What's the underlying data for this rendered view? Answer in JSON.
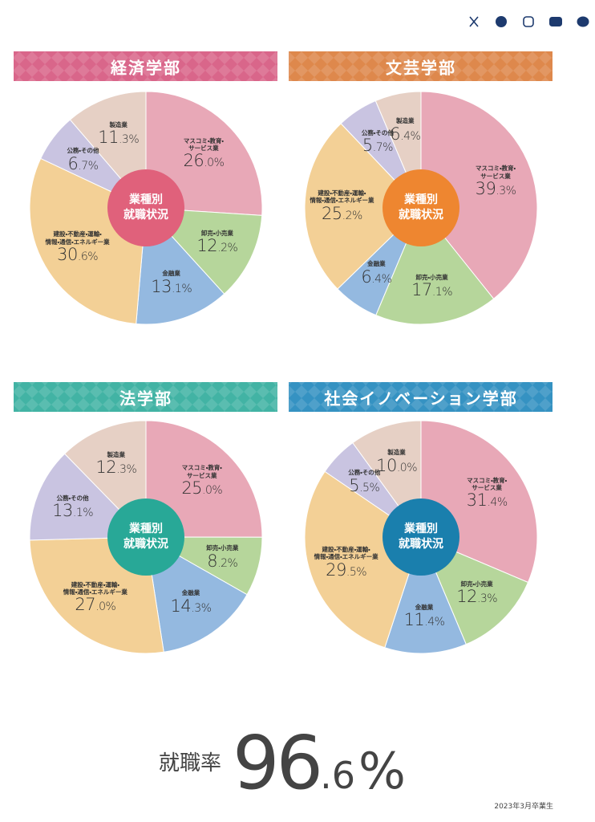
{
  "chart_data": [
    {
      "type": "pie",
      "title": "経済学部",
      "center_label": [
        "業種別",
        "就職状況"
      ],
      "header_color": "#d9668a",
      "center_color": "#e0617b",
      "categories": [
        "マスコミ・教育・\nサービス業",
        "卸売・小売業",
        "金融業",
        "建設・不動産・運輸・\n情報・通信・エネルギー業",
        "公務・その他",
        "製造業"
      ],
      "values": [
        26.0,
        12.2,
        13.1,
        30.6,
        6.7,
        11.3
      ],
      "value_labels": [
        "26.0%",
        "12.2%",
        "13.1%",
        "30.6%",
        "6.7%",
        "11.3%"
      ],
      "colors": [
        "#e8a8b7",
        "#b6d69b",
        "#94b9e0",
        "#f3d096",
        "#c9c4e1",
        "#e6d0c5"
      ]
    },
    {
      "type": "pie",
      "title": "文芸学部",
      "center_label": [
        "業種別",
        "就職状況"
      ],
      "header_color": "#de884c",
      "center_color": "#ee8630",
      "categories": [
        "マスコミ・教育・\nサービス業",
        "卸売・小売業",
        "金融業",
        "建設・不動産・運輸・\n情報・通信・エネルギー業",
        "公務・その他",
        "製造業"
      ],
      "values": [
        39.3,
        17.1,
        6.4,
        25.2,
        5.7,
        6.4
      ],
      "value_labels": [
        "39.3%",
        "17.1%",
        "6.4%",
        "25.2%",
        "5.7%",
        "6.4%"
      ],
      "colors": [
        "#e8a8b7",
        "#b6d69b",
        "#94b9e0",
        "#f3d096",
        "#c9c4e1",
        "#e6d0c5"
      ]
    },
    {
      "type": "pie",
      "title": "法学部",
      "center_label": [
        "業種別",
        "就職状況"
      ],
      "header_color": "#42b3a4",
      "center_color": "#28a897",
      "categories": [
        "マスコミ・教育・\nサービス業",
        "卸売・小売業",
        "金融業",
        "建設・不動産・運輸・\n情報・通信・エネルギー業",
        "公務・その他",
        "製造業"
      ],
      "values": [
        25.0,
        8.2,
        14.3,
        27.0,
        13.1,
        12.3
      ],
      "value_labels": [
        "25.0%",
        "8.2%",
        "14.3%",
        "27.0%",
        "13.1%",
        "12.3%"
      ],
      "colors": [
        "#e8a8b7",
        "#b6d69b",
        "#94b9e0",
        "#f3d096",
        "#c9c4e1",
        "#e6d0c5"
      ]
    },
    {
      "type": "pie",
      "title": "社会イノベーション学部",
      "center_label": [
        "業種別",
        "就職状況"
      ],
      "header_color": "#3592c2",
      "center_color": "#1a7fad",
      "categories": [
        "マスコミ・教育・\nサービス業",
        "卸売・小売業",
        "金融業",
        "建設・不動産・運輸・\n情報・通信・エネルギー業",
        "公務・その他",
        "製造業"
      ],
      "values": [
        31.4,
        12.3,
        11.4,
        29.5,
        5.5,
        10.0
      ],
      "value_labels": [
        "31.4%",
        "12.3%",
        "11.4%",
        "29.5%",
        "5.5%",
        "10.0%"
      ],
      "colors": [
        "#e8a8b7",
        "#b6d69b",
        "#94b9e0",
        "#f3d096",
        "#c9c4e1",
        "#e6d0c5"
      ]
    }
  ],
  "employment_rate": {
    "label": "就職率",
    "value": "96.6%",
    "note": "2023年3月卒業生"
  }
}
